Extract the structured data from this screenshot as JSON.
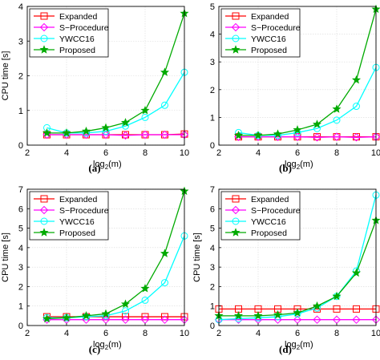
{
  "figure": {
    "panel_labels": [
      "(a)",
      "(b)",
      "(c)",
      "(d)"
    ]
  },
  "styles": {
    "series": [
      {
        "color": "#ff0000",
        "marker": "square"
      },
      {
        "color": "#ff00ff",
        "marker": "diamond"
      },
      {
        "color": "#00ffff",
        "marker": "circle"
      },
      {
        "color": "#00aa00",
        "marker": "star"
      }
    ],
    "axis_color": "#000000",
    "grid_color": "#d9d9d9"
  },
  "chart_data": [
    {
      "type": "line",
      "panel": "(a)",
      "xlabel": "log",
      "xlabel_sub": "2",
      "xlabel_tail": "(m)",
      "ylabel": "CPU time [s]",
      "xlim": [
        2,
        10
      ],
      "ylim": [
        0,
        4
      ],
      "xticks": [
        "2",
        "4",
        "6",
        "8",
        "10"
      ],
      "yticks": [
        "0",
        "1",
        "2",
        "3",
        "4"
      ],
      "grid": true,
      "legend": "top-left",
      "x": [
        3,
        4,
        5,
        6,
        7,
        8,
        9,
        10
      ],
      "series": [
        {
          "name": "Expanded",
          "values": [
            0.3,
            0.3,
            0.3,
            0.3,
            0.3,
            0.3,
            0.3,
            0.32
          ]
        },
        {
          "name": "S−Procedure",
          "values": [
            0.3,
            0.3,
            0.3,
            0.3,
            0.28,
            0.3,
            0.3,
            0.3
          ]
        },
        {
          "name": "YWCC16",
          "values": [
            0.5,
            0.35,
            0.35,
            0.4,
            0.55,
            0.8,
            1.15,
            2.1
          ]
        },
        {
          "name": "Proposed",
          "values": [
            0.35,
            0.35,
            0.4,
            0.5,
            0.65,
            1.0,
            2.1,
            3.8
          ]
        }
      ]
    },
    {
      "type": "line",
      "panel": "(b)",
      "xlabel": "log",
      "xlabel_sub": "2",
      "xlabel_tail": "(m)",
      "ylabel": "",
      "xlim": [
        2,
        10
      ],
      "ylim": [
        0,
        5
      ],
      "xticks": [
        "2",
        "4",
        "6",
        "8",
        "10"
      ],
      "yticks": [
        "0",
        "1",
        "2",
        "3",
        "4",
        "5"
      ],
      "grid": true,
      "legend": "top-left",
      "x": [
        3,
        4,
        5,
        6,
        7,
        8,
        9,
        10
      ],
      "series": [
        {
          "name": "Expanded",
          "values": [
            0.3,
            0.3,
            0.3,
            0.3,
            0.3,
            0.3,
            0.3,
            0.3
          ]
        },
        {
          "name": "S−Procedure",
          "values": [
            0.3,
            0.3,
            0.3,
            0.3,
            0.28,
            0.3,
            0.28,
            0.3
          ]
        },
        {
          "name": "YWCC16",
          "values": [
            0.45,
            0.35,
            0.35,
            0.45,
            0.6,
            0.9,
            1.4,
            2.8
          ]
        },
        {
          "name": "Proposed",
          "values": [
            0.35,
            0.35,
            0.4,
            0.55,
            0.75,
            1.3,
            2.35,
            4.9
          ]
        }
      ]
    },
    {
      "type": "line",
      "panel": "(c)",
      "xlabel": "log",
      "xlabel_sub": "2",
      "xlabel_tail": "(m)",
      "ylabel": "CPU time [s]",
      "xlim": [
        2,
        10
      ],
      "ylim": [
        0,
        7
      ],
      "xticks": [
        "2",
        "4",
        "6",
        "8",
        "10"
      ],
      "yticks": [
        "0",
        "1",
        "2",
        "3",
        "4",
        "5",
        "6",
        "7"
      ],
      "grid": true,
      "legend": "top-left",
      "x": [
        3,
        4,
        5,
        6,
        7,
        8,
        9,
        10
      ],
      "series": [
        {
          "name": "Expanded",
          "values": [
            0.45,
            0.45,
            0.45,
            0.45,
            0.45,
            0.45,
            0.45,
            0.45
          ]
        },
        {
          "name": "S−Procedure",
          "values": [
            0.3,
            0.3,
            0.3,
            0.3,
            0.3,
            0.3,
            0.3,
            0.3
          ]
        },
        {
          "name": "YWCC16",
          "values": [
            0.4,
            0.4,
            0.45,
            0.5,
            0.75,
            1.3,
            2.2,
            4.6
          ]
        },
        {
          "name": "Proposed",
          "values": [
            0.35,
            0.4,
            0.5,
            0.6,
            1.1,
            1.9,
            3.7,
            6.9
          ]
        }
      ]
    },
    {
      "type": "line",
      "panel": "(d)",
      "xlabel": "log",
      "xlabel_sub": "2",
      "xlabel_tail": "(m)",
      "ylabel": "CPU time [s]",
      "xlim": [
        2,
        10
      ],
      "ylim": [
        0,
        7
      ],
      "xticks": [
        "2",
        "4",
        "6",
        "8",
        "10"
      ],
      "yticks": [
        "0",
        "1",
        "2",
        "3",
        "4",
        "5",
        "6",
        "7"
      ],
      "grid": true,
      "legend": "top-left",
      "x": [
        2,
        3,
        4,
        5,
        6,
        7,
        8,
        9,
        10
      ],
      "series": [
        {
          "name": "Expanded",
          "values": [
            0.85,
            0.85,
            0.85,
            0.85,
            0.85,
            0.85,
            0.85,
            0.85,
            0.85
          ]
        },
        {
          "name": "S−Procedure",
          "values": [
            0.3,
            0.3,
            0.3,
            0.3,
            0.3,
            0.3,
            0.3,
            0.3,
            0.3
          ]
        },
        {
          "name": "YWCC16",
          "values": [
            0.3,
            0.35,
            0.4,
            0.45,
            0.6,
            0.9,
            1.5,
            2.8,
            6.7
          ]
        },
        {
          "name": "Proposed",
          "values": [
            0.5,
            0.5,
            0.5,
            0.55,
            0.65,
            1.0,
            1.5,
            2.7,
            5.4
          ]
        }
      ]
    }
  ]
}
